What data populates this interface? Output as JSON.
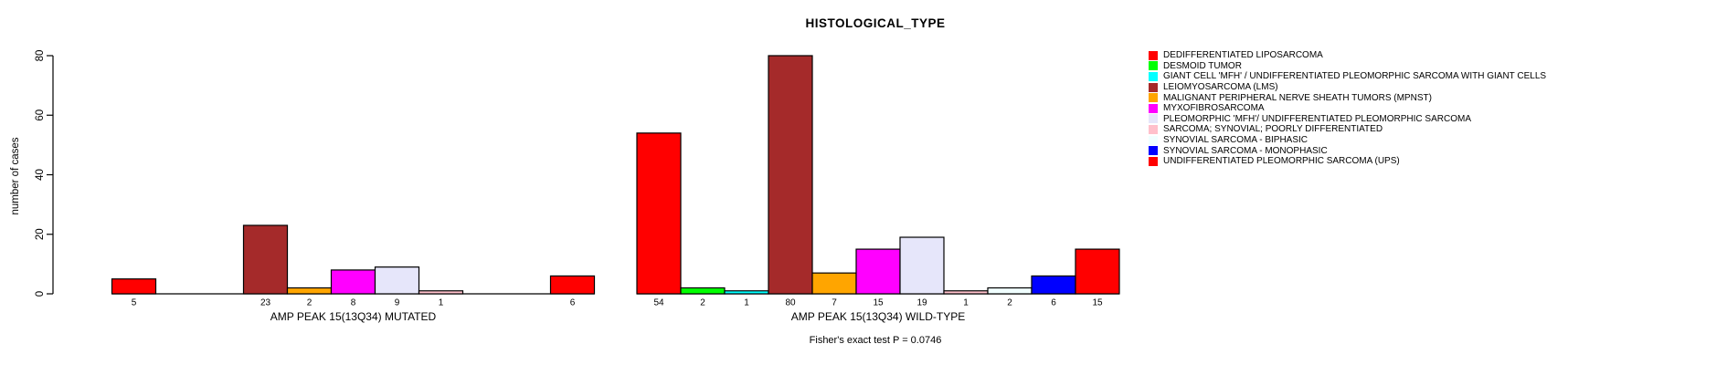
{
  "title": "HISTOLOGICAL_TYPE",
  "footer": "Fisher's exact test P = 0.0746",
  "y_axis": {
    "label": "number of cases",
    "ticks": [
      0,
      20,
      40,
      60,
      80
    ]
  },
  "chart_data": {
    "type": "bar",
    "title": "HISTOLOGICAL_TYPE",
    "xlabel": "",
    "ylabel": "number of cases",
    "ylim": [
      0,
      80
    ],
    "yticks": [
      0,
      20,
      40,
      60,
      80
    ],
    "grid": false,
    "legend_position": "top-right",
    "annotation": "Fisher's exact test P = 0.0746",
    "categories": [
      "DEDIFFERENTIATED LIPOSARCOMA",
      "DESMOID TUMOR",
      "GIANT CELL 'MFH' / UNDIFFERENTIATED PLEOMORPHIC SARCOMA WITH GIANT CELLS",
      "LEIOMYOSARCOMA (LMS)",
      "MALIGNANT PERIPHERAL NERVE SHEATH TUMORS (MPNST)",
      "MYXOFIBROSARCOMA",
      "PLEOMORPHIC 'MFH'/ UNDIFFERENTIATED PLEOMORPHIC SARCOMA",
      "SARCOMA; SYNOVIAL; POORLY DIFFERENTIATED",
      "SYNOVIAL SARCOMA - BIPHASIC",
      "SYNOVIAL SARCOMA - MONOPHASIC",
      "UNDIFFERENTIATED PLEOMORPHIC SARCOMA (UPS)"
    ],
    "colors": [
      "#FF0000",
      "#00FF00",
      "#00FFFF",
      "#A52A2A",
      "#FFA500",
      "#FF00FF",
      "#E6E6FA",
      "#FFC0CB",
      "#F0FFFF",
      "#0000FF",
      "#FF0000"
    ],
    "groups": [
      {
        "label": "AMP PEAK 15(13Q34) MUTATED",
        "values": [
          5,
          0,
          0,
          23,
          2,
          8,
          9,
          1,
          0,
          0,
          6
        ]
      },
      {
        "label": "AMP PEAK 15(13Q34) WILD-TYPE",
        "values": [
          54,
          2,
          1,
          80,
          7,
          15,
          19,
          1,
          2,
          6,
          15
        ]
      }
    ],
    "bar_value_labels": true
  },
  "legend": {
    "items": [
      {
        "label": "DEDIFFERENTIATED LIPOSARCOMA",
        "color": "#FF0000"
      },
      {
        "label": "DESMOID TUMOR",
        "color": "#00FF00"
      },
      {
        "label": "GIANT CELL 'MFH' / UNDIFFERENTIATED PLEOMORPHIC SARCOMA WITH GIANT CELLS",
        "color": "#00FFFF"
      },
      {
        "label": "LEIOMYOSARCOMA (LMS)",
        "color": "#A52A2A"
      },
      {
        "label": "MALIGNANT PERIPHERAL NERVE SHEATH TUMORS (MPNST)",
        "color": "#FFA500"
      },
      {
        "label": "MYXOFIBROSARCOMA",
        "color": "#FF00FF"
      },
      {
        "label": "PLEOMORPHIC 'MFH'/ UNDIFFERENTIATED PLEOMORPHIC SARCOMA",
        "color": "#E6E6FA"
      },
      {
        "label": "SARCOMA; SYNOVIAL; POORLY DIFFERENTIATED",
        "color": "#FFC0CB"
      },
      {
        "label": "SYNOVIAL SARCOMA - BIPHASIC",
        "color": "#F0FFFF"
      },
      {
        "label": "SYNOVIAL SARCOMA - MONOPHASIC",
        "color": "#0000FF"
      },
      {
        "label": "UNDIFFERENTIATED PLEOMORPHIC SARCOMA (UPS)",
        "color": "#FF0000"
      }
    ]
  }
}
